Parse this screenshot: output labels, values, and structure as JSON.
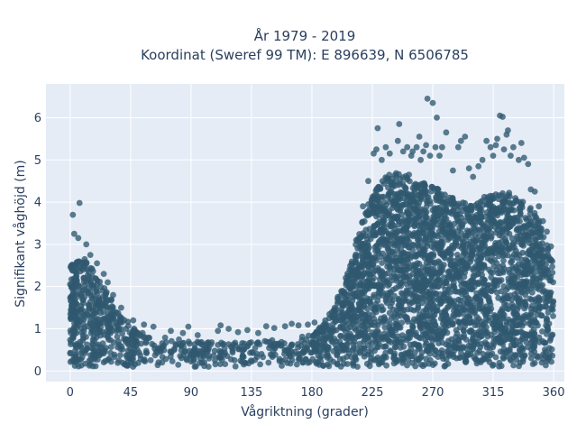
{
  "chart_data": {
    "type": "scatter",
    "title_line1": "År 1979 - 2019",
    "title_line2": "Koordinat (Sweref 99 TM): E 896639, N 6506785",
    "xlabel": "Vågriktning (grader)",
    "ylabel": "Signifikant våghöjd (m)",
    "xlim": [
      -18,
      368
    ],
    "ylim": [
      -0.25,
      6.8
    ],
    "x_ticks": [
      0,
      45,
      90,
      135,
      180,
      225,
      270,
      315,
      360
    ],
    "y_ticks": [
      0,
      1,
      2,
      3,
      4,
      5,
      6
    ],
    "grid": true,
    "legend": "none",
    "marker_color": "#2f5870",
    "background_color": "#e5ecf6",
    "gridline_color": "#ffffff",
    "envelope": {
      "x": [
        0,
        5,
        10,
        15,
        20,
        25,
        30,
        35,
        40,
        45,
        50,
        60,
        70,
        80,
        90,
        100,
        110,
        120,
        130,
        140,
        150,
        160,
        170,
        180,
        185,
        190,
        195,
        200,
        205,
        210,
        215,
        220,
        225,
        230,
        235,
        240,
        245,
        250,
        255,
        260,
        265,
        270,
        275,
        280,
        285,
        290,
        295,
        300,
        305,
        310,
        315,
        320,
        325,
        330,
        335,
        340,
        345,
        350,
        355,
        360
      ],
      "max": [
        2.5,
        2.6,
        2.7,
        2.5,
        2.2,
        2.0,
        1.8,
        1.5,
        1.3,
        1.1,
        1.0,
        0.85,
        0.8,
        0.75,
        0.75,
        0.7,
        0.7,
        0.7,
        0.7,
        0.7,
        0.75,
        0.75,
        0.8,
        0.85,
        1.0,
        1.2,
        1.5,
        1.8,
        2.2,
        2.7,
        3.3,
        3.8,
        4.2,
        4.5,
        4.6,
        4.7,
        4.7,
        4.7,
        4.6,
        4.5,
        4.5,
        4.4,
        4.3,
        4.2,
        4.1,
        4.0,
        4.0,
        4.0,
        4.0,
        4.2,
        4.3,
        4.3,
        4.3,
        4.2,
        4.1,
        4.0,
        3.8,
        3.5,
        3.0,
        2.5
      ]
    },
    "outliers": [
      {
        "x": 2,
        "y": 3.7
      },
      {
        "x": 7,
        "y": 3.98
      },
      {
        "x": 3,
        "y": 3.25
      },
      {
        "x": 6,
        "y": 3.15
      },
      {
        "x": 12,
        "y": 3.0
      },
      {
        "x": 15,
        "y": 2.75
      },
      {
        "x": 20,
        "y": 2.55
      },
      {
        "x": 25,
        "y": 2.3
      },
      {
        "x": 28,
        "y": 2.1
      },
      {
        "x": 32,
        "y": 1.8
      },
      {
        "x": 38,
        "y": 1.5
      },
      {
        "x": 47,
        "y": 1.2
      },
      {
        "x": 55,
        "y": 1.1
      },
      {
        "x": 62,
        "y": 1.05
      },
      {
        "x": 75,
        "y": 0.95
      },
      {
        "x": 84,
        "y": 0.9
      },
      {
        "x": 88,
        "y": 1.05
      },
      {
        "x": 95,
        "y": 0.85
      },
      {
        "x": 110,
        "y": 0.95
      },
      {
        "x": 112,
        "y": 1.08
      },
      {
        "x": 118,
        "y": 1.0
      },
      {
        "x": 125,
        "y": 0.92
      },
      {
        "x": 132,
        "y": 0.97
      },
      {
        "x": 140,
        "y": 0.9
      },
      {
        "x": 146,
        "y": 1.06
      },
      {
        "x": 152,
        "y": 1.02
      },
      {
        "x": 160,
        "y": 1.06
      },
      {
        "x": 165,
        "y": 1.12
      },
      {
        "x": 170,
        "y": 1.08
      },
      {
        "x": 177,
        "y": 1.1
      },
      {
        "x": 182,
        "y": 1.15
      },
      {
        "x": 190,
        "y": 1.2
      },
      {
        "x": 197,
        "y": 1.5
      },
      {
        "x": 203,
        "y": 1.9
      },
      {
        "x": 208,
        "y": 2.4
      },
      {
        "x": 213,
        "y": 3.1
      },
      {
        "x": 218,
        "y": 3.9
      },
      {
        "x": 222,
        "y": 4.5
      },
      {
        "x": 226,
        "y": 5.15
      },
      {
        "x": 228,
        "y": 5.25
      },
      {
        "x": 229,
        "y": 5.75
      },
      {
        "x": 232,
        "y": 5.0
      },
      {
        "x": 235,
        "y": 5.3
      },
      {
        "x": 238,
        "y": 5.15
      },
      {
        "x": 244,
        "y": 5.45
      },
      {
        "x": 245,
        "y": 5.85
      },
      {
        "x": 248,
        "y": 5.2
      },
      {
        "x": 251,
        "y": 5.3
      },
      {
        "x": 254,
        "y": 5.1
      },
      {
        "x": 255,
        "y": 5.2
      },
      {
        "x": 258,
        "y": 5.3
      },
      {
        "x": 260,
        "y": 5.55
      },
      {
        "x": 261,
        "y": 5.0
      },
      {
        "x": 263,
        "y": 5.2
      },
      {
        "x": 265,
        "y": 5.35
      },
      {
        "x": 266,
        "y": 6.45
      },
      {
        "x": 268,
        "y": 5.1
      },
      {
        "x": 270,
        "y": 6.35
      },
      {
        "x": 272,
        "y": 5.3
      },
      {
        "x": 273,
        "y": 6.0
      },
      {
        "x": 275,
        "y": 5.1
      },
      {
        "x": 277,
        "y": 5.3
      },
      {
        "x": 280,
        "y": 5.65
      },
      {
        "x": 285,
        "y": 4.75
      },
      {
        "x": 289,
        "y": 5.3
      },
      {
        "x": 291,
        "y": 5.45
      },
      {
        "x": 294,
        "y": 5.55
      },
      {
        "x": 297,
        "y": 4.8
      },
      {
        "x": 300,
        "y": 4.6
      },
      {
        "x": 304,
        "y": 4.85
      },
      {
        "x": 307,
        "y": 5.0
      },
      {
        "x": 310,
        "y": 5.45
      },
      {
        "x": 313,
        "y": 5.3
      },
      {
        "x": 315,
        "y": 5.1
      },
      {
        "x": 317,
        "y": 5.35
      },
      {
        "x": 318,
        "y": 5.5
      },
      {
        "x": 320,
        "y": 6.05
      },
      {
        "x": 322,
        "y": 6.02
      },
      {
        "x": 323,
        "y": 5.25
      },
      {
        "x": 325,
        "y": 5.6
      },
      {
        "x": 326,
        "y": 5.7
      },
      {
        "x": 328,
        "y": 5.1
      },
      {
        "x": 330,
        "y": 5.3
      },
      {
        "x": 334,
        "y": 5.0
      },
      {
        "x": 336,
        "y": 5.4
      },
      {
        "x": 338,
        "y": 5.05
      },
      {
        "x": 341,
        "y": 4.9
      },
      {
        "x": 343,
        "y": 4.3
      },
      {
        "x": 346,
        "y": 4.25
      },
      {
        "x": 349,
        "y": 3.9
      },
      {
        "x": 352,
        "y": 3.55
      },
      {
        "x": 355,
        "y": 3.3
      },
      {
        "x": 358,
        "y": 2.95
      },
      {
        "x": 359,
        "y": 2.6
      }
    ],
    "sample_count": 3800,
    "sample_seed": 7
  }
}
